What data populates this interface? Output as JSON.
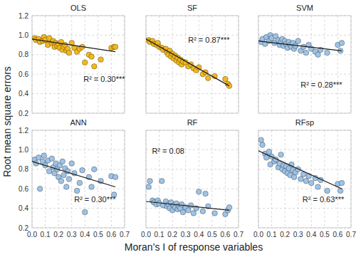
{
  "xlabel": "Moran’s I of response variables",
  "ylabel": "Root mean square errors",
  "chart_data": [
    {
      "type": "scatter",
      "title": "OLS",
      "color": "#f2b91c",
      "marker": "circle",
      "grid": true,
      "tick_labels": "y",
      "xlim": [
        0,
        0.7
      ],
      "ylim": [
        0.2,
        1.2
      ],
      "xticks": [
        {
          "value": 0,
          "label": "0.0"
        },
        0.1,
        0.2,
        0.3,
        0.4,
        0.5,
        0.6,
        0.7
      ],
      "yticks": [
        0.2,
        0.4,
        0.6,
        0.8,
        {
          "value": 1,
          "label": "1.0"
        },
        1.2
      ],
      "annotation": "R² = 0.30***",
      "x": [
        0.02,
        0.03,
        0.05,
        0.06,
        0.08,
        0.09,
        0.1,
        0.12,
        0.13,
        0.15,
        0.16,
        0.17,
        0.18,
        0.19,
        0.2,
        0.21,
        0.22,
        0.23,
        0.24,
        0.25,
        0.26,
        0.27,
        0.28,
        0.3,
        0.32,
        0.34,
        0.36,
        0.38,
        0.4,
        0.43,
        0.45,
        0.47,
        0.52,
        0.6,
        0.62,
        0.63
      ],
      "values": [
        0.97,
        0.95,
        0.96,
        0.93,
        0.94,
        0.98,
        0.95,
        0.9,
        0.97,
        0.92,
        0.94,
        0.88,
        0.92,
        0.89,
        0.91,
        0.87,
        0.93,
        0.85,
        0.88,
        0.9,
        0.84,
        0.86,
        0.82,
        0.92,
        0.87,
        0.83,
        0.86,
        0.88,
        0.72,
        0.8,
        0.78,
        0.68,
        0.75,
        0.87,
        0.88,
        0.88
      ],
      "trend": {
        "x": [
          0,
          0.63
        ],
        "values": [
          0.96,
          0.83
        ]
      }
    },
    {
      "type": "scatter",
      "title": "SF",
      "color": "#f2b91c",
      "marker": "circle",
      "grid": true,
      "tick_labels": false,
      "xlim": [
        0,
        0.7
      ],
      "ylim": [
        0.2,
        1.2
      ],
      "xticks": [
        {
          "value": 0,
          "label": "0.0"
        },
        0.1,
        0.2,
        0.3,
        0.4,
        0.5,
        0.6,
        0.7
      ],
      "yticks": [
        0.2,
        0.4,
        0.6,
        0.8,
        {
          "value": 1,
          "label": "1.0"
        },
        1.2
      ],
      "annotation": "R² = 0.87***",
      "x": [
        0.02,
        0.03,
        0.05,
        0.06,
        0.08,
        0.09,
        0.1,
        0.12,
        0.13,
        0.15,
        0.16,
        0.17,
        0.18,
        0.19,
        0.2,
        0.21,
        0.22,
        0.23,
        0.24,
        0.25,
        0.26,
        0.27,
        0.28,
        0.3,
        0.32,
        0.34,
        0.36,
        0.38,
        0.4,
        0.43,
        0.45,
        0.47,
        0.52,
        0.6,
        0.62,
        0.63
      ],
      "values": [
        0.95,
        0.93,
        0.94,
        0.91,
        0.9,
        0.92,
        0.88,
        0.87,
        0.85,
        0.86,
        0.82,
        0.8,
        0.84,
        0.78,
        0.81,
        0.76,
        0.79,
        0.74,
        0.77,
        0.72,
        0.75,
        0.7,
        0.73,
        0.72,
        0.68,
        0.7,
        0.66,
        0.64,
        0.67,
        0.6,
        0.62,
        0.56,
        0.58,
        0.55,
        0.5,
        0.48
      ],
      "trend": {
        "x": [
          0,
          0.63
        ],
        "values": [
          0.96,
          0.48
        ]
      }
    },
    {
      "type": "scatter",
      "title": "SVM",
      "color": "#9dc3e6",
      "marker": "circle",
      "grid": true,
      "tick_labels": false,
      "xlim": [
        0,
        0.7
      ],
      "ylim": [
        0.2,
        1.2
      ],
      "xticks": [
        {
          "value": 0,
          "label": "0.0"
        },
        0.1,
        0.2,
        0.3,
        0.4,
        0.5,
        0.6,
        0.7
      ],
      "yticks": [
        0.2,
        0.4,
        0.6,
        0.8,
        {
          "value": 1,
          "label": "1.0"
        },
        1.2
      ],
      "annotation": "R² = 0.28***",
      "x": [
        0.02,
        0.03,
        0.05,
        0.06,
        0.08,
        0.09,
        0.1,
        0.12,
        0.13,
        0.15,
        0.16,
        0.17,
        0.18,
        0.19,
        0.2,
        0.21,
        0.22,
        0.23,
        0.24,
        0.25,
        0.26,
        0.27,
        0.28,
        0.3,
        0.32,
        0.34,
        0.36,
        0.38,
        0.4,
        0.43,
        0.45,
        0.47,
        0.52,
        0.6,
        0.62,
        0.63
      ],
      "values": [
        0.93,
        0.96,
        0.91,
        0.98,
        0.94,
        1.0,
        0.97,
        0.92,
        0.99,
        0.95,
        0.9,
        0.93,
        0.96,
        0.89,
        0.94,
        0.91,
        0.87,
        0.93,
        0.9,
        0.88,
        0.92,
        0.86,
        0.89,
        0.94,
        0.84,
        0.88,
        0.82,
        0.9,
        0.86,
        0.83,
        0.8,
        0.85,
        0.82,
        0.9,
        0.84,
        0.92
      ],
      "trend": {
        "x": [
          0,
          0.63
        ],
        "values": [
          0.94,
          0.84
        ]
      }
    },
    {
      "type": "scatter",
      "title": "ANN",
      "color": "#9dc3e6",
      "marker": "circle",
      "grid": true,
      "tick_labels": true,
      "xlim": [
        0,
        0.7
      ],
      "ylim": [
        0.2,
        1.2
      ],
      "xticks": [
        {
          "value": 0,
          "label": "0.0"
        },
        0.1,
        0.2,
        0.3,
        0.4,
        0.5,
        0.6,
        0.7
      ],
      "yticks": [
        0.2,
        0.4,
        0.6,
        0.8,
        {
          "value": 1,
          "label": "1.0"
        },
        1.2
      ],
      "annotation": "R² = 0.30***",
      "x": [
        0.02,
        0.03,
        0.05,
        0.06,
        0.08,
        0.09,
        0.1,
        0.12,
        0.13,
        0.15,
        0.16,
        0.17,
        0.18,
        0.19,
        0.2,
        0.21,
        0.22,
        0.23,
        0.24,
        0.25,
        0.26,
        0.27,
        0.28,
        0.3,
        0.32,
        0.34,
        0.36,
        0.38,
        0.4,
        0.43,
        0.45,
        0.47,
        0.52,
        0.6,
        0.62,
        0.63
      ],
      "values": [
        0.9,
        0.86,
        0.92,
        0.6,
        0.88,
        0.94,
        0.84,
        0.89,
        0.78,
        0.91,
        0.82,
        0.76,
        0.86,
        0.8,
        0.72,
        0.84,
        0.68,
        0.88,
        0.74,
        0.81,
        0.62,
        0.78,
        0.7,
        0.86,
        0.76,
        0.58,
        0.66,
        0.79,
        0.36,
        0.72,
        0.62,
        0.8,
        0.68,
        0.73,
        0.54,
        0.72
      ],
      "trend": {
        "x": [
          0,
          0.63
        ],
        "values": [
          0.88,
          0.62
        ]
      }
    },
    {
      "type": "scatter",
      "title": "RF",
      "color": "#9dc3e6",
      "marker": "circle",
      "grid": true,
      "tick_labels": "x",
      "xlim": [
        0,
        0.7
      ],
      "ylim": [
        0.2,
        1.2
      ],
      "xticks": [
        {
          "value": 0,
          "label": "0.0"
        },
        0.1,
        0.2,
        0.3,
        0.4,
        0.5,
        0.6,
        0.7
      ],
      "yticks": [
        0.2,
        0.4,
        0.6,
        0.8,
        {
          "value": 1,
          "label": "1.0"
        },
        1.2
      ],
      "annotation": "R² = 0.08",
      "x": [
        0.02,
        0.03,
        0.05,
        0.06,
        0.08,
        0.09,
        0.1,
        0.12,
        0.13,
        0.15,
        0.16,
        0.17,
        0.18,
        0.19,
        0.2,
        0.21,
        0.22,
        0.23,
        0.24,
        0.25,
        0.26,
        0.27,
        0.28,
        0.3,
        0.32,
        0.34,
        0.36,
        0.38,
        0.4,
        0.43,
        0.45,
        0.47,
        0.52,
        0.6,
        0.62,
        0.63
      ],
      "values": [
        0.62,
        0.68,
        0.48,
        0.46,
        0.44,
        0.48,
        0.45,
        0.68,
        0.43,
        0.47,
        0.42,
        0.44,
        0.4,
        0.46,
        0.38,
        0.43,
        0.41,
        0.45,
        0.39,
        0.42,
        0.4,
        0.44,
        0.36,
        0.41,
        0.38,
        0.43,
        0.35,
        0.4,
        0.57,
        0.37,
        0.55,
        0.42,
        0.35,
        0.34,
        0.38,
        0.41
      ],
      "trend": {
        "x": [
          0,
          0.63
        ],
        "values": [
          0.47,
          0.38
        ]
      }
    },
    {
      "type": "scatter",
      "title": "RFsp",
      "color": "#9dc3e6",
      "marker": "circle",
      "grid": true,
      "tick_labels": "x",
      "xlim": [
        0,
        0.7
      ],
      "ylim": [
        0.2,
        1.2
      ],
      "xticks": [
        {
          "value": 0,
          "label": "0.0"
        },
        0.1,
        0.2,
        0.3,
        0.4,
        0.5,
        0.6,
        0.7
      ],
      "yticks": [
        0.2,
        0.4,
        0.6,
        0.8,
        {
          "value": 1,
          "label": "1.0"
        },
        1.2
      ],
      "annotation": "R² = 0.63***",
      "x": [
        0.02,
        0.03,
        0.05,
        0.06,
        0.08,
        0.09,
        0.1,
        0.12,
        0.13,
        0.15,
        0.16,
        0.17,
        0.18,
        0.19,
        0.2,
        0.21,
        0.22,
        0.23,
        0.24,
        0.25,
        0.26,
        0.27,
        0.28,
        0.3,
        0.32,
        0.34,
        0.36,
        0.38,
        0.4,
        0.43,
        0.45,
        0.47,
        0.52,
        0.6,
        0.62,
        0.63
      ],
      "values": [
        1.1,
        1.05,
        0.96,
        0.92,
        0.98,
        0.85,
        0.93,
        0.88,
        0.9,
        0.82,
        0.86,
        0.95,
        0.8,
        0.84,
        0.78,
        0.83,
        0.76,
        0.81,
        0.74,
        0.85,
        0.79,
        0.72,
        0.77,
        0.8,
        0.7,
        0.75,
        0.68,
        0.73,
        0.66,
        0.71,
        0.62,
        0.69,
        0.58,
        0.65,
        0.58,
        0.66
      ],
      "trend": {
        "x": [
          0,
          0.63
        ],
        "values": [
          0.99,
          0.6
        ]
      }
    }
  ]
}
